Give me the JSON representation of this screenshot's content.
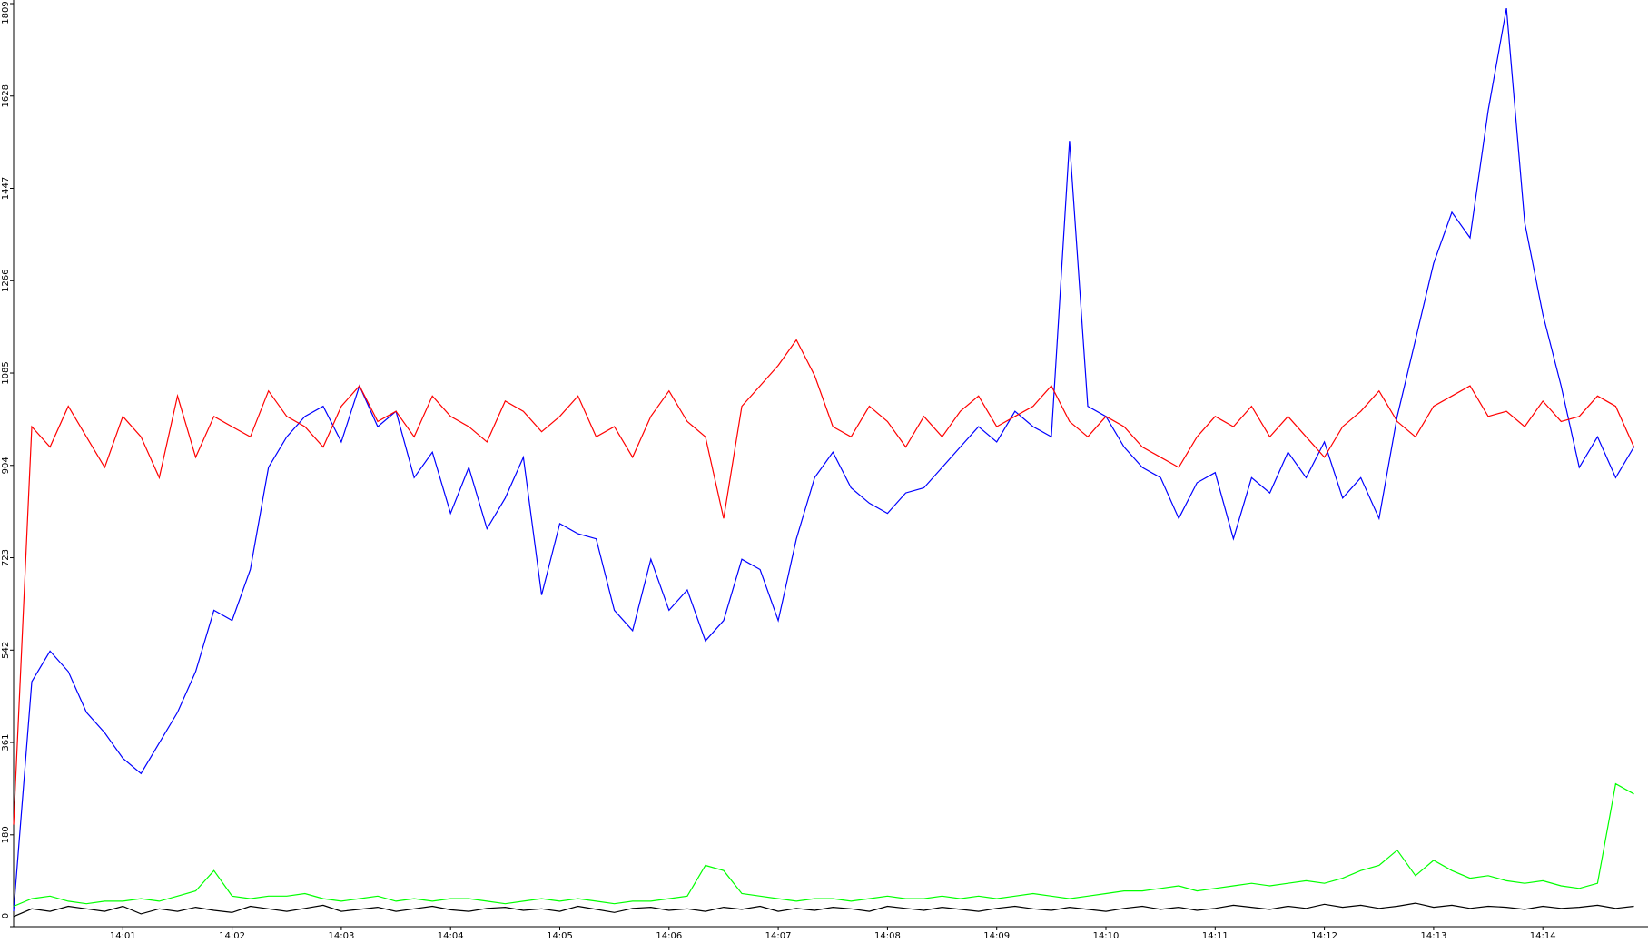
{
  "chart_data": {
    "type": "line",
    "categories": [
      null,
      null,
      null,
      null,
      null,
      null,
      "14:01",
      null,
      null,
      null,
      null,
      null,
      "14:02",
      null,
      null,
      null,
      null,
      null,
      "14:03",
      null,
      null,
      null,
      null,
      null,
      "14:04",
      null,
      null,
      null,
      null,
      null,
      "14:05",
      null,
      null,
      null,
      null,
      null,
      "14:06",
      null,
      null,
      null,
      null,
      null,
      "14:07",
      null,
      null,
      null,
      null,
      null,
      "14:08",
      null,
      null,
      null,
      null,
      null,
      "14:09",
      null,
      null,
      null,
      null,
      null,
      "14:10",
      null,
      null,
      null,
      null,
      null,
      "14:11",
      null,
      null,
      null,
      null,
      null,
      "14:12",
      null,
      null,
      null,
      null,
      null,
      "14:13",
      null,
      null,
      null,
      null,
      null,
      "14:14",
      null,
      null,
      null,
      null,
      null
    ],
    "ylim": [
      0,
      1809
    ],
    "yticks": [
      0,
      180,
      361,
      542,
      723,
      904,
      1085,
      1266,
      1447,
      1628,
      1809
    ],
    "series": [
      {
        "color": "#0000ff",
        "values": [
          30,
          480,
          540,
          500,
          420,
          380,
          330,
          300,
          360,
          420,
          500,
          620,
          600,
          700,
          900,
          960,
          1000,
          1020,
          950,
          1060,
          980,
          1010,
          880,
          930,
          810,
          900,
          780,
          840,
          920,
          650,
          790,
          770,
          760,
          620,
          580,
          720,
          620,
          660,
          560,
          600,
          720,
          700,
          600,
          760,
          880,
          930,
          860,
          830,
          810,
          850,
          860,
          900,
          940,
          980,
          950,
          1010,
          980,
          960,
          1540,
          1020,
          1000,
          940,
          900,
          880,
          800,
          870,
          890,
          760,
          880,
          850,
          930,
          880,
          950,
          840,
          880,
          800,
          1000,
          1150,
          1300,
          1400,
          1350,
          1600,
          1800,
          1380,
          1200,
          1060,
          900,
          960,
          880,
          940
        ]
      },
      {
        "color": "#ff0000",
        "values": [
          200,
          980,
          940,
          1020,
          960,
          900,
          1000,
          960,
          880,
          1040,
          920,
          1000,
          980,
          960,
          1050,
          1000,
          980,
          940,
          1020,
          1060,
          990,
          1010,
          960,
          1040,
          1000,
          980,
          950,
          1030,
          1010,
          970,
          1000,
          1040,
          960,
          980,
          920,
          1000,
          1050,
          990,
          960,
          800,
          1020,
          1060,
          1100,
          1150,
          1080,
          980,
          960,
          1020,
          990,
          940,
          1000,
          960,
          1010,
          1040,
          980,
          1000,
          1020,
          1060,
          990,
          960,
          1000,
          980,
          940,
          920,
          900,
          960,
          1000,
          980,
          1020,
          960,
          1000,
          960,
          920,
          980,
          1010,
          1050,
          990,
          960,
          1020,
          1040,
          1060,
          1000,
          1010,
          980,
          1030,
          990,
          1000,
          1040,
          1020,
          940
        ]
      },
      {
        "color": "#00ff00",
        "values": [
          40,
          55,
          60,
          50,
          45,
          50,
          50,
          55,
          50,
          60,
          70,
          110,
          60,
          55,
          60,
          60,
          65,
          55,
          50,
          55,
          60,
          50,
          55,
          50,
          55,
          55,
          50,
          45,
          50,
          55,
          50,
          55,
          50,
          45,
          50,
          50,
          55,
          60,
          120,
          110,
          65,
          60,
          55,
          50,
          55,
          55,
          50,
          55,
          60,
          55,
          55,
          60,
          55,
          60,
          55,
          60,
          65,
          60,
          55,
          60,
          65,
          70,
          70,
          75,
          80,
          70,
          75,
          80,
          85,
          80,
          85,
          90,
          85,
          95,
          110,
          120,
          150,
          100,
          130,
          110,
          95,
          100,
          90,
          85,
          90,
          80,
          75,
          85,
          280,
          260
        ]
      },
      {
        "color": "#000000",
        "values": [
          20,
          35,
          30,
          40,
          35,
          30,
          40,
          25,
          35,
          30,
          38,
          32,
          28,
          40,
          35,
          30,
          36,
          42,
          30,
          34,
          38,
          30,
          35,
          40,
          33,
          30,
          36,
          38,
          32,
          35,
          30,
          40,
          34,
          28,
          36,
          38,
          32,
          35,
          30,
          38,
          34,
          40,
          30,
          36,
          32,
          38,
          35,
          30,
          40,
          36,
          32,
          38,
          34,
          30,
          36,
          40,
          35,
          32,
          38,
          34,
          30,
          36,
          40,
          34,
          38,
          32,
          36,
          42,
          38,
          34,
          40,
          36,
          44,
          38,
          42,
          36,
          40,
          46,
          38,
          42,
          36,
          40,
          38,
          34,
          40,
          36,
          38,
          42,
          36,
          40
        ]
      }
    ]
  }
}
